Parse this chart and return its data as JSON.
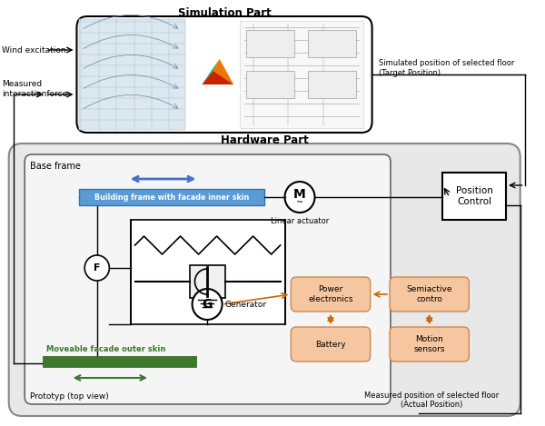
{
  "title": "Simulation Part",
  "title2": "Hardware Part",
  "white": "#ffffff",
  "black": "#000000",
  "blue_arrow": "#4472c4",
  "blue_bar_face": "#5b9bd5",
  "blue_bar_edge": "#2e75b6",
  "green_bar_color": "#3a7a2a",
  "green_arrow_color": "#3a7a2a",
  "orange_box": "#f5c6a0",
  "orange_edge": "#cc8855",
  "orange_arrow": "#cc6600",
  "hw_bg": "#e8e8e8",
  "bf_bg": "#f5f5f5",
  "sim_bg": "#ffffff",
  "labels": {
    "wind_excitation": "Wind excitation",
    "measured_interaction": "Measured\ninteractionforce",
    "simulated_position": "Simulated position of selected floor\n(Target Position)",
    "measured_position": "Measured position of selected floor\n(Actual Position)",
    "base_frame": "Base frame",
    "prototyp": "Prototyp (top view)",
    "building_frame": "Building frame with facade inner skin",
    "linear_actuator": "Linear actuator",
    "generator": "Generator",
    "power_electronics": "Power\nelectronics",
    "semiactive_control": "Semiactive\ncontro",
    "battery": "Battery",
    "motion_sensors": "Motion\nsensors",
    "moveable_facade": "Moveable facade outer skin",
    "position_control": "Position\nControl"
  }
}
